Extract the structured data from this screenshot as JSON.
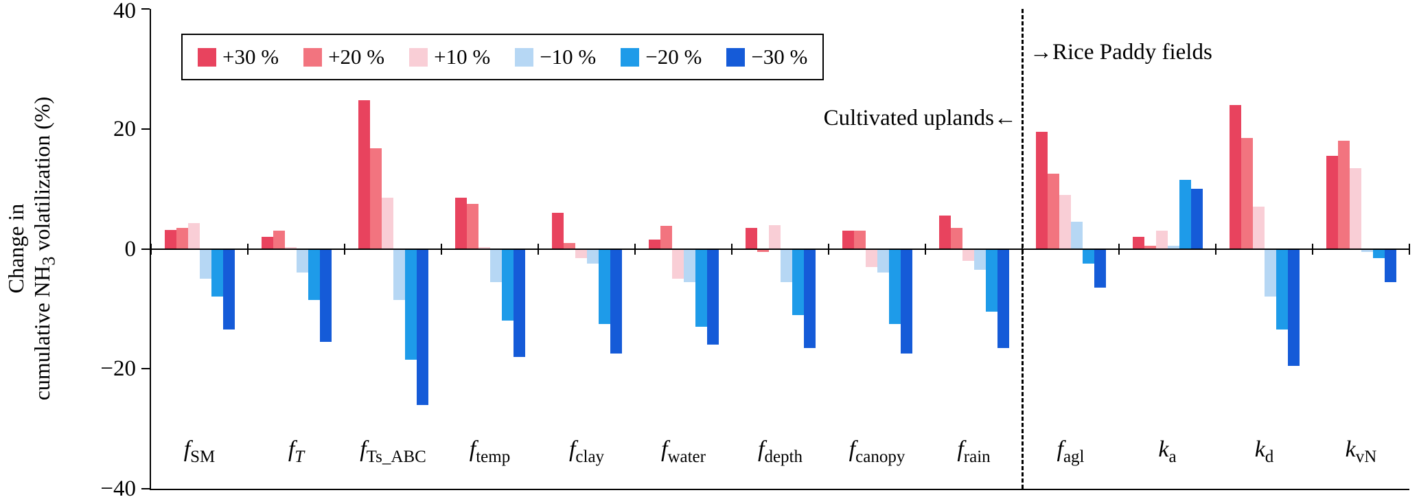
{
  "chart_data": {
    "type": "bar",
    "title": "",
    "ylabel": "Change in cumulative NH3 volatilization (%)",
    "ylabel_parts": {
      "line1": "Change in",
      "line2_pre": "cumulative NH",
      "line2_sub": "3",
      "line2_post": " volatilization (%)"
    },
    "ylim": [
      -40,
      40
    ],
    "yticks": [
      {
        "value": 40,
        "label": "40"
      },
      {
        "value": 20,
        "label": "20"
      },
      {
        "value": 0,
        "label": "0"
      },
      {
        "value": -20,
        "label": "−20"
      },
      {
        "value": -40,
        "label": "−40"
      }
    ],
    "grid": false,
    "legend_position": "top-left-inside",
    "separator_index": 9,
    "categories": [
      {
        "id": "f-SM",
        "main": "f",
        "sub": "SM",
        "mainItalic": true,
        "subItalic": false
      },
      {
        "id": "f-T",
        "main": "f",
        "sub": "T",
        "mainItalic": true,
        "subItalic": true
      },
      {
        "id": "f-Ts_ABC",
        "main": "f",
        "sub": "Ts_ABC",
        "mainItalic": true,
        "subItalic": false
      },
      {
        "id": "f-temp",
        "main": "f",
        "sub": "temp",
        "mainItalic": true,
        "subItalic": false
      },
      {
        "id": "f-clay",
        "main": "f",
        "sub": "clay",
        "mainItalic": true,
        "subItalic": false
      },
      {
        "id": "f-water",
        "main": "f",
        "sub": "water",
        "mainItalic": true,
        "subItalic": false
      },
      {
        "id": "f-depth",
        "main": "f",
        "sub": "depth",
        "mainItalic": true,
        "subItalic": false
      },
      {
        "id": "f-canopy",
        "main": "f",
        "sub": "canopy",
        "mainItalic": true,
        "subItalic": false
      },
      {
        "id": "f-rain",
        "main": "f",
        "sub": "rain",
        "mainItalic": true,
        "subItalic": false
      },
      {
        "id": "f-agl",
        "main": "f",
        "sub": "agl",
        "mainItalic": true,
        "subItalic": false
      },
      {
        "id": "k-a",
        "main": "k",
        "sub": "a",
        "mainItalic": true,
        "subItalic": false
      },
      {
        "id": "k-d",
        "main": "k",
        "sub": "d",
        "mainItalic": true,
        "subItalic": false
      },
      {
        "id": "k-vN",
        "main": "k",
        "sub": "vN",
        "mainItalic": true,
        "subItalic": false
      }
    ],
    "series": [
      {
        "id": "p30",
        "name": "+30 %",
        "color": "#e8435e",
        "values": [
          3.2,
          2.0,
          24.8,
          8.5,
          6.0,
          1.5,
          3.5,
          3.0,
          5.5,
          19.5,
          2.0,
          24.0,
          15.5
        ]
      },
      {
        "id": "p20",
        "name": "+20 %",
        "color": "#f2747f",
        "values": [
          3.5,
          3.0,
          16.8,
          7.5,
          1.0,
          3.8,
          -0.5,
          3.0,
          3.5,
          12.5,
          0.5,
          18.5,
          18.0
        ]
      },
      {
        "id": "p10",
        "name": "+10 %",
        "color": "#f9ced6",
        "values": [
          4.3,
          0.3,
          8.5,
          0.3,
          -1.5,
          -5.0,
          4.0,
          -3.0,
          -2.0,
          9.0,
          3.0,
          7.0,
          13.5
        ]
      },
      {
        "id": "m10",
        "name": "−10 %",
        "color": "#b6d7f4",
        "values": [
          -5.0,
          -4.0,
          -8.5,
          -5.5,
          -2.5,
          -5.5,
          -5.5,
          -4.0,
          -3.5,
          4.5,
          0.5,
          -8.0,
          -0.5
        ]
      },
      {
        "id": "m20",
        "name": "−20 %",
        "color": "#1e9be9",
        "values": [
          -8.0,
          -8.5,
          -18.5,
          -12.0,
          -12.5,
          -13.0,
          -11.0,
          -12.5,
          -10.5,
          -2.5,
          11.5,
          -13.5,
          -1.5
        ]
      },
      {
        "id": "m30",
        "name": "−30 %",
        "color": "#155bd8",
        "values": [
          -13.5,
          -15.5,
          -26.0,
          -18.0,
          -17.5,
          -16.0,
          -16.5,
          -17.5,
          -16.5,
          -6.5,
          10.0,
          -19.5,
          -5.5
        ]
      }
    ]
  },
  "annotations": {
    "left_label": "Cultivated uplands",
    "left_arrow": "←",
    "right_arrow": "→",
    "right_label": "Rice Paddy fields"
  }
}
